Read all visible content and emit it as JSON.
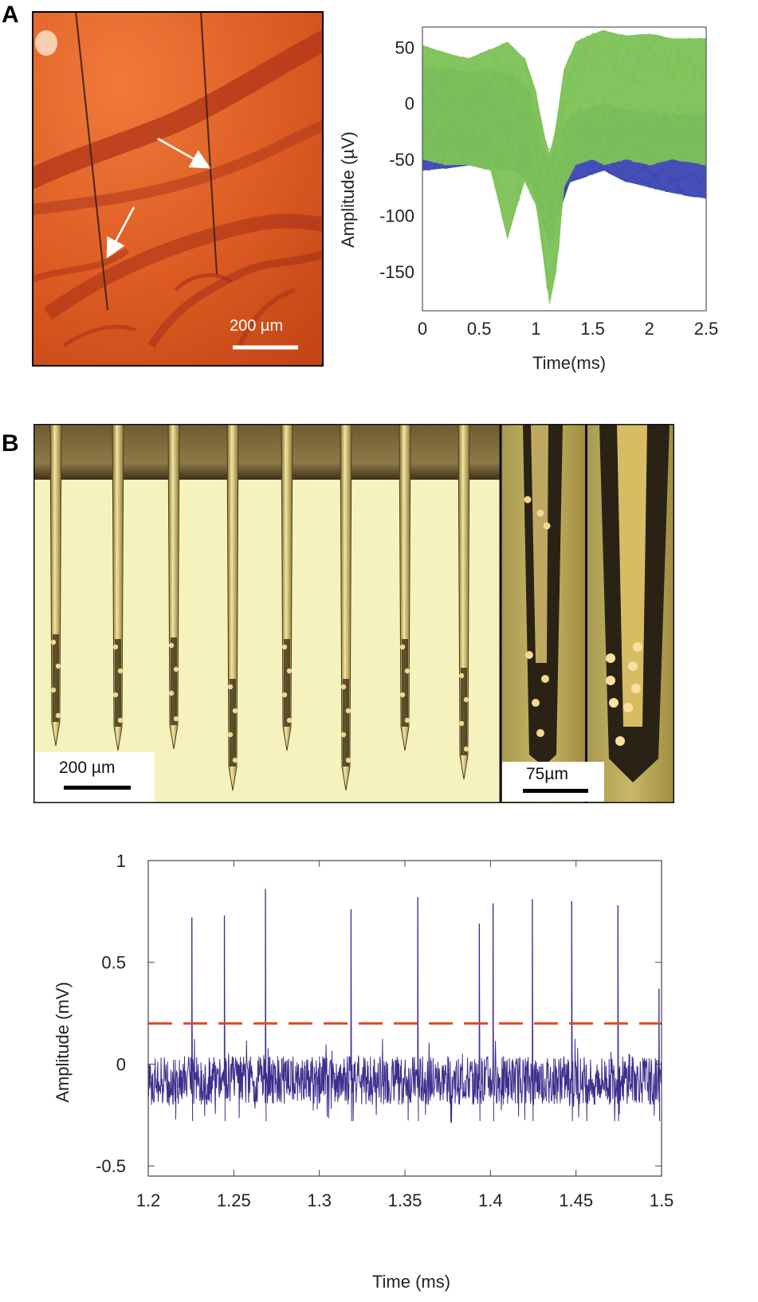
{
  "panel_a": {
    "letter": "A",
    "photo_scale_label": "200 µm",
    "spike_chart": {
      "xlabel": "Time(ms)",
      "ylabel": "Amplitude (µV)",
      "x_ticks": [
        "0",
        "0.5",
        "1",
        "1.5",
        "2",
        "2.5"
      ],
      "y_ticks": [
        "50",
        "0",
        "-50",
        "-100",
        "-150"
      ]
    }
  },
  "panel_b": {
    "letter": "B",
    "probe_scale_label": "200 µm",
    "tip_scale_label": "75µm"
  },
  "colors": {
    "tissue": "#d8541c",
    "vessel": "#a8281a",
    "cluster_green": "#7dc257",
    "cluster_blue": "#3c46b4",
    "trace": "#3f2e8c",
    "threshold": "#e04a2a",
    "probe_gold": "#d8c070",
    "probe_background": "#f4f0b8"
  },
  "chart_data": [
    {
      "type": "line",
      "title": "",
      "xlabel": "Time(ms)",
      "ylabel": "Amplitude (µV)",
      "xlim": [
        0,
        2.5
      ],
      "ylim": [
        -185,
        68
      ],
      "x_ticks": [
        0,
        0.5,
        1,
        1.5,
        2,
        2.5
      ],
      "y_ticks": [
        50,
        0,
        -50,
        -100,
        -150
      ],
      "grid": false,
      "series": [
        {
          "description_key": "blue",
          "x": [
            0,
            0.2,
            0.4,
            0.6,
            0.8,
            0.95,
            1.05,
            1.12,
            1.2,
            1.3,
            1.45,
            1.6,
            1.8,
            2.0,
            2.2,
            2.5
          ],
          "y_upper": [
            30,
            32,
            28,
            30,
            26,
            10,
            -40,
            -50,
            -30,
            -10,
            -5,
            0,
            -5,
            -8,
            -10,
            -8
          ],
          "y_lower": [
            -60,
            -58,
            -55,
            -58,
            -60,
            -70,
            -100,
            -130,
            -100,
            -70,
            -65,
            -60,
            -70,
            -75,
            -80,
            -85
          ]
        },
        {
          "description_key": "green",
          "x": [
            0,
            0.2,
            0.4,
            0.6,
            0.75,
            0.9,
            1.0,
            1.08,
            1.12,
            1.18,
            1.25,
            1.35,
            1.5,
            1.6,
            1.8,
            2.0,
            2.2,
            2.5
          ],
          "y_upper": [
            52,
            45,
            40,
            48,
            55,
            40,
            10,
            -30,
            -45,
            -20,
            30,
            55,
            62,
            65,
            60,
            62,
            58,
            58
          ],
          "y_lower": [
            -50,
            -55,
            -55,
            -60,
            -120,
            -70,
            -90,
            -150,
            -180,
            -150,
            -75,
            -55,
            -50,
            -55,
            -50,
            -55,
            -50,
            -55
          ],
          "mean": [
            20,
            15,
            12,
            18,
            20,
            10,
            -30,
            -95,
            -130,
            -90,
            -20,
            15,
            20,
            18,
            15,
            20,
            18,
            15
          ]
        }
      ]
    },
    {
      "type": "line",
      "title": "",
      "xlabel": "Time (ms)",
      "ylabel": "Amplitude (mV)",
      "xlim": [
        1.2,
        1.5
      ],
      "ylim": [
        -0.55,
        1.0
      ],
      "x_ticks": [
        1.2,
        1.25,
        1.3,
        1.35,
        1.4,
        1.45,
        1.5
      ],
      "y_ticks": [
        1,
        0.5,
        0,
        -0.5
      ],
      "grid": false,
      "threshold": 0.2,
      "noise_amplitude": 0.12,
      "noise_baseline": -0.08,
      "spikes": [
        {
          "x": 1.2255,
          "y": 0.72
        },
        {
          "x": 1.2445,
          "y": 0.73
        },
        {
          "x": 1.2685,
          "y": 0.86
        },
        {
          "x": 1.3185,
          "y": 0.76
        },
        {
          "x": 1.3575,
          "y": 0.82
        },
        {
          "x": 1.3935,
          "y": 0.69
        },
        {
          "x": 1.4015,
          "y": 0.79
        },
        {
          "x": 1.4245,
          "y": 0.81
        },
        {
          "x": 1.4475,
          "y": 0.8
        },
        {
          "x": 1.4745,
          "y": 0.78
        },
        {
          "x": 1.4985,
          "y": 0.37
        }
      ]
    }
  ]
}
